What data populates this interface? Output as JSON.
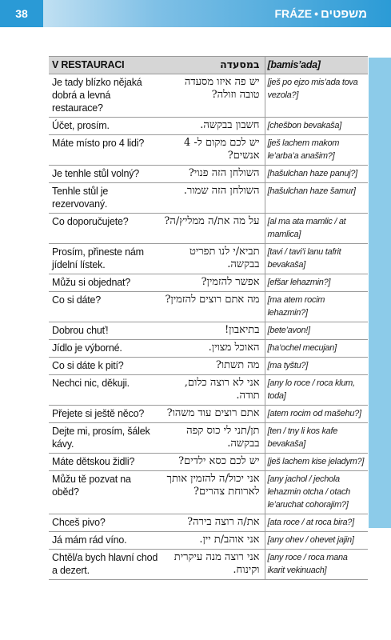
{
  "header": {
    "page_number": "38",
    "section_cz": "FRÁZE",
    "separator": "•",
    "section_he": "משפטים"
  },
  "table": {
    "header": {
      "cz": "V RESTAURACI",
      "he": "במסעדה",
      "tr": "[bamis’ada]"
    },
    "rows": [
      {
        "cz": "Je tady blízko nějaká dobrá a levná restaurace?",
        "he": "יש פה איזו מסעדה טובה וזולה?",
        "tr": "[ješ po ejzo mis’ada tova vezola?]"
      },
      {
        "cz": "Účet, prosím.",
        "he": "חשבון בבקשה.",
        "tr": "[chešbon bevakaša]"
      },
      {
        "cz": "Máte místo pro 4 lidi?",
        "he": "יש לכם מקום ל- 4 אנשים?",
        "tr": "[ješ lachem makom le’arba’a anašim?]"
      },
      {
        "cz": "Je tenhle stůl volný?",
        "he": "השולחן הזה פנוי?",
        "tr": "[hašulchan haze panuj?]"
      },
      {
        "cz": "Tenhle stůl je rezervovaný.",
        "he": "השולחן הזה שמור.",
        "tr": "[hašulchan haze šamur]"
      },
      {
        "cz": "Co doporučujete?",
        "he": "על מה את/ה ממליץ/ה?",
        "tr": "[al ma ata mamlic / at mamlica]"
      },
      {
        "cz": "Prosím, přineste nám jídelní lístek.",
        "he": "תביא/י לנו תפריט בבקשה.",
        "tr": "[tavi / tavi’i lanu tafrit bevakaša]"
      },
      {
        "cz": "Můžu si objednat?",
        "he": "אפשר להזמין?",
        "tr": "[efšar lehazmin?]"
      },
      {
        "cz": "Co si dáte?",
        "he": "מה אתם רוצים להזמין?",
        "tr": "[ma atem rocim lehazmin?]"
      },
      {
        "cz": "Dobrou chuť!",
        "he": "בתיאבון!",
        "tr": "[bete’avon!]"
      },
      {
        "cz": "Jídlo je výborné.",
        "he": "האוכל מצוין.",
        "tr": "[ha’ochel mecujan]"
      },
      {
        "cz": "Co si dáte k pití?",
        "he": "מה תשתו?",
        "tr": "[ma tyštu?]"
      },
      {
        "cz": "Nechci nic, děkuji.",
        "he": "אני לא רוצה כלום, תודה.",
        "tr": "[any lo roce / roca klum, toda]"
      },
      {
        "cz": "Přejete si ještě něco?",
        "he": "אתם רוצים עוד משהו?",
        "tr": "[atem rocim od mašehu?]"
      },
      {
        "cz": "Dejte mi, prosím, šálek kávy.",
        "he": "תן/תני לי כוס קפה בבקשה.",
        "tr": "[ten / tny li kos kafe bevakaša]"
      },
      {
        "cz": "Máte dětskou židli?",
        "he": "יש לכם כסא ילדים?",
        "tr": "[ješ lachem kise jeladym?]"
      },
      {
        "cz": "Můžu tě pozvat na oběd?",
        "he": "אני יכול/ה להזמין אותך לארוחת צהרים?",
        "tr": "[any jachol / jechola lehazmin otcha / otach le’aruchat cohorajim?]"
      },
      {
        "cz": "Chceš pivo?",
        "he": "את/ה רוצה בירה?",
        "tr": "[ata roce / at roca bira?]"
      },
      {
        "cz": "Já mám rád víno.",
        "he": "אני אוהב/ת יין.",
        "tr": "[any ohev / ohevet jajin]"
      },
      {
        "cz": "Chtěl/a bych hlavní chod a dezert.",
        "he": "אני רוצה מנה עיקרית וקינוח.",
        "tr": "[any roce / roca mana ikarit vekinuach]"
      }
    ]
  }
}
